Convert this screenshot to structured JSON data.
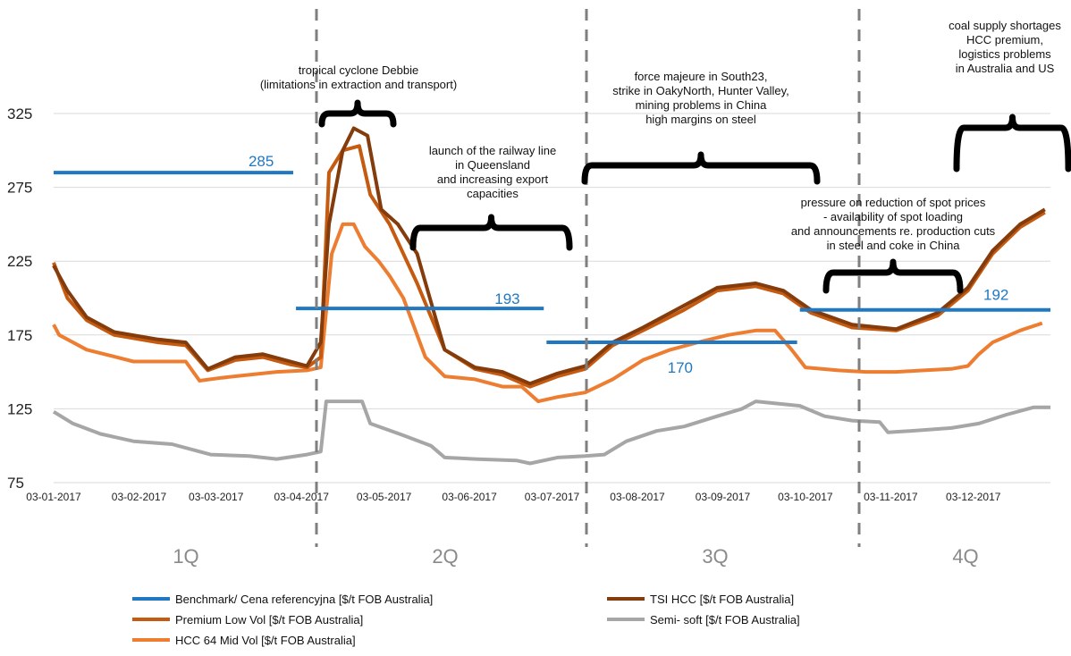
{
  "chart_data": {
    "type": "line",
    "ylim": [
      75,
      325
    ],
    "yticks": [
      75,
      125,
      175,
      225,
      275,
      325
    ],
    "x_tick_labels": [
      "03-01-2017",
      "03-02-2017",
      "03-03-2017",
      "03-04-2017",
      "03-05-2017",
      "03-06-2017",
      "03-07-2017",
      "03-08-2017",
      "03-09-2017",
      "03-10-2017",
      "03-11-2017",
      "03-12-2017"
    ],
    "grid": true,
    "legend_position": "bottom",
    "quarters": [
      "1Q",
      "2Q",
      "3Q",
      "4Q"
    ],
    "benchmark": {
      "name": "Benchmark/ Cena referencyjna [$/t FOB Australia]",
      "color": "#1f78c1",
      "segments": [
        {
          "from": "2017-01-03",
          "to": "2017-03-31",
          "value": 285,
          "label": "285"
        },
        {
          "from": "2017-04-01",
          "to": "2017-06-30",
          "value": 193,
          "label": "193"
        },
        {
          "from": "2017-07-01",
          "to": "2017-09-30",
          "value": 170,
          "label": "170"
        },
        {
          "from": "2017-10-01",
          "to": "2017-12-31",
          "value": 192,
          "label": "192"
        }
      ]
    },
    "series": [
      {
        "name": "Semi- soft  [$/t FOB Australia]",
        "color": "#a6a6a6",
        "points": [
          [
            "2017-01-03",
            123
          ],
          [
            "2017-01-10",
            115
          ],
          [
            "2017-01-20",
            108
          ],
          [
            "2017-02-01",
            103
          ],
          [
            "2017-02-15",
            101
          ],
          [
            "2017-03-01",
            94
          ],
          [
            "2017-03-15",
            93
          ],
          [
            "2017-03-25",
            91
          ],
          [
            "2017-04-05",
            94
          ],
          [
            "2017-04-10",
            96
          ],
          [
            "2017-04-12",
            130
          ],
          [
            "2017-04-25",
            130
          ],
          [
            "2017-04-28",
            115
          ],
          [
            "2017-05-10",
            107
          ],
          [
            "2017-05-20",
            100
          ],
          [
            "2017-05-25",
            92
          ],
          [
            "2017-06-05",
            91
          ],
          [
            "2017-06-20",
            90
          ],
          [
            "2017-06-25",
            88
          ],
          [
            "2017-07-05",
            92
          ],
          [
            "2017-07-15",
            93
          ],
          [
            "2017-07-22",
            94
          ],
          [
            "2017-07-30",
            103
          ],
          [
            "2017-08-10",
            110
          ],
          [
            "2017-08-20",
            113
          ],
          [
            "2017-09-01",
            120
          ],
          [
            "2017-09-10",
            125
          ],
          [
            "2017-09-15",
            130
          ],
          [
            "2017-10-01",
            127
          ],
          [
            "2017-10-10",
            120
          ],
          [
            "2017-10-20",
            117
          ],
          [
            "2017-10-30",
            116
          ],
          [
            "2017-11-02",
            109
          ],
          [
            "2017-11-10",
            110
          ],
          [
            "2017-11-25",
            112
          ],
          [
            "2017-12-05",
            115
          ],
          [
            "2017-12-15",
            121
          ],
          [
            "2017-12-25",
            126
          ],
          [
            "2017-12-31",
            126
          ]
        ]
      },
      {
        "name": "HCC 64 Mid Vol  [$/t FOB Australia]",
        "color": "#ed7d31",
        "points": [
          [
            "2017-01-03",
            182
          ],
          [
            "2017-01-05",
            175
          ],
          [
            "2017-01-15",
            165
          ],
          [
            "2017-02-01",
            157
          ],
          [
            "2017-02-20",
            157
          ],
          [
            "2017-02-25",
            144
          ],
          [
            "2017-03-05",
            146
          ],
          [
            "2017-03-15",
            148
          ],
          [
            "2017-03-25",
            150
          ],
          [
            "2017-04-05",
            151
          ],
          [
            "2017-04-10",
            153
          ],
          [
            "2017-04-14",
            230
          ],
          [
            "2017-04-18",
            250
          ],
          [
            "2017-04-22",
            250
          ],
          [
            "2017-04-26",
            235
          ],
          [
            "2017-05-01",
            225
          ],
          [
            "2017-05-05",
            215
          ],
          [
            "2017-05-10",
            200
          ],
          [
            "2017-05-18",
            160
          ],
          [
            "2017-05-25",
            147
          ],
          [
            "2017-06-05",
            145
          ],
          [
            "2017-06-15",
            140
          ],
          [
            "2017-06-22",
            140
          ],
          [
            "2017-06-28",
            130
          ],
          [
            "2017-07-05",
            133
          ],
          [
            "2017-07-15",
            136
          ],
          [
            "2017-07-25",
            145
          ],
          [
            "2017-08-05",
            158
          ],
          [
            "2017-08-15",
            165
          ],
          [
            "2017-08-25",
            170
          ],
          [
            "2017-09-05",
            175
          ],
          [
            "2017-09-15",
            178
          ],
          [
            "2017-09-22",
            178
          ],
          [
            "2017-09-28",
            165
          ],
          [
            "2017-10-03",
            153
          ],
          [
            "2017-10-15",
            151
          ],
          [
            "2017-10-25",
            150
          ],
          [
            "2017-11-05",
            150
          ],
          [
            "2017-11-15",
            151
          ],
          [
            "2017-11-25",
            152
          ],
          [
            "2017-12-01",
            154
          ],
          [
            "2017-12-05",
            162
          ],
          [
            "2017-12-10",
            170
          ],
          [
            "2017-12-20",
            178
          ],
          [
            "2017-12-28",
            183
          ]
        ]
      },
      {
        "name": "Premium Low Vol  [$/t FOB Australia]",
        "color": "#c55a11",
        "points": [
          [
            "2017-01-03",
            224
          ],
          [
            "2017-01-08",
            200
          ],
          [
            "2017-01-15",
            185
          ],
          [
            "2017-01-25",
            175
          ],
          [
            "2017-02-10",
            170
          ],
          [
            "2017-02-20",
            168
          ],
          [
            "2017-02-28",
            151
          ],
          [
            "2017-03-10",
            158
          ],
          [
            "2017-03-20",
            160
          ],
          [
            "2017-03-30",
            155
          ],
          [
            "2017-04-05",
            153
          ],
          [
            "2017-04-10",
            160
          ],
          [
            "2017-04-13",
            285
          ],
          [
            "2017-04-18",
            300
          ],
          [
            "2017-04-24",
            303
          ],
          [
            "2017-04-28",
            270
          ],
          [
            "2017-05-05",
            250
          ],
          [
            "2017-05-15",
            210
          ],
          [
            "2017-05-25",
            165
          ],
          [
            "2017-06-05",
            152
          ],
          [
            "2017-06-15",
            148
          ],
          [
            "2017-06-25",
            140
          ],
          [
            "2017-07-05",
            147
          ],
          [
            "2017-07-15",
            152
          ],
          [
            "2017-07-25",
            168
          ],
          [
            "2017-08-05",
            178
          ],
          [
            "2017-08-20",
            192
          ],
          [
            "2017-09-01",
            205
          ],
          [
            "2017-09-15",
            208
          ],
          [
            "2017-09-25",
            203
          ],
          [
            "2017-10-05",
            190
          ],
          [
            "2017-10-20",
            180
          ],
          [
            "2017-11-05",
            178
          ],
          [
            "2017-11-20",
            188
          ],
          [
            "2017-12-01",
            205
          ],
          [
            "2017-12-10",
            230
          ],
          [
            "2017-12-20",
            248
          ],
          [
            "2017-12-29",
            258
          ]
        ]
      },
      {
        "name": "TSI HCC  [$/t FOB Australia]",
        "color": "#843c0c",
        "points": [
          [
            "2017-01-03",
            222
          ],
          [
            "2017-01-08",
            205
          ],
          [
            "2017-01-15",
            187
          ],
          [
            "2017-01-25",
            177
          ],
          [
            "2017-02-10",
            172
          ],
          [
            "2017-02-20",
            170
          ],
          [
            "2017-02-28",
            152
          ],
          [
            "2017-03-10",
            160
          ],
          [
            "2017-03-20",
            162
          ],
          [
            "2017-03-30",
            157
          ],
          [
            "2017-04-05",
            154
          ],
          [
            "2017-04-10",
            170
          ],
          [
            "2017-04-13",
            250
          ],
          [
            "2017-04-18",
            300
          ],
          [
            "2017-04-22",
            315
          ],
          [
            "2017-04-27",
            310
          ],
          [
            "2017-05-02",
            260
          ],
          [
            "2017-05-08",
            250
          ],
          [
            "2017-05-15",
            230
          ],
          [
            "2017-05-25",
            165
          ],
          [
            "2017-06-05",
            153
          ],
          [
            "2017-06-15",
            150
          ],
          [
            "2017-06-25",
            142
          ],
          [
            "2017-07-05",
            149
          ],
          [
            "2017-07-15",
            154
          ],
          [
            "2017-07-25",
            170
          ],
          [
            "2017-08-05",
            180
          ],
          [
            "2017-08-20",
            195
          ],
          [
            "2017-09-01",
            207
          ],
          [
            "2017-09-15",
            210
          ],
          [
            "2017-09-25",
            205
          ],
          [
            "2017-10-05",
            192
          ],
          [
            "2017-10-20",
            182
          ],
          [
            "2017-11-05",
            179
          ],
          [
            "2017-11-20",
            190
          ],
          [
            "2017-12-01",
            207
          ],
          [
            "2017-12-10",
            232
          ],
          [
            "2017-12-20",
            250
          ],
          [
            "2017-12-29",
            260
          ]
        ]
      }
    ],
    "annotations": [
      {
        "lines": [
          "tropical cyclone Debbie",
          "(limitations in extraction and transport)"
        ]
      },
      {
        "lines": [
          "launch of the railway line",
          "in Queensland",
          "and increasing export",
          "capacities"
        ]
      },
      {
        "lines": [
          "force majeure in South23,",
          "strike in OakyNorth, Hunter Valley,",
          "mining problems in China",
          "high margins on steel"
        ]
      },
      {
        "lines": [
          "pressure on reduction of spot prices",
          "- availability of spot loading",
          "and announcements re. production cuts",
          "in steel and coke in China"
        ]
      },
      {
        "lines": [
          "coal supply shortages",
          "HCC premium,",
          "logistics problems",
          "in Australia and US"
        ]
      }
    ],
    "legend": [
      "Benchmark/ Cena referencyjna [$/t FOB Australia]",
      "TSI HCC  [$/t FOB Australia]",
      "Premium Low Vol  [$/t FOB Australia]",
      "Semi- soft  [$/t FOB Australia]",
      "HCC 64 Mid Vol  [$/t FOB Australia]"
    ]
  }
}
